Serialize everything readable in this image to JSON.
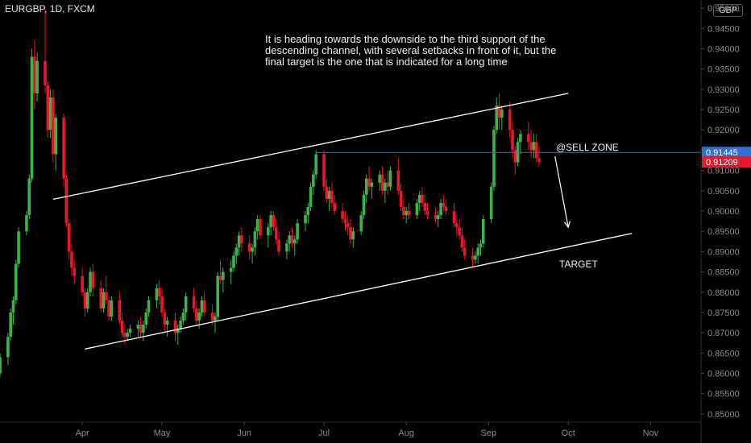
{
  "header": {
    "symbol": "EURGBP, 1D, FXCM",
    "currency": "GBP"
  },
  "annotations": {
    "note": "It is heading towards the downside to the third support of the descending channel, with several setbacks in front of it, but the final target is the one that is indicated for a long time",
    "sell_zone": "@SELL ZONE",
    "target": "TARGET"
  },
  "colors": {
    "up": "#39b54a",
    "down": "#e8172b",
    "line_white": "#ffffff",
    "level_blue": "#2e6fd8",
    "arrow": "#ffffff"
  },
  "chart_data": {
    "type": "candlestick",
    "xlabel": "",
    "ylabel": "",
    "y_ticks": [
      "0.85000",
      "0.85500",
      "0.86000",
      "0.86500",
      "0.87000",
      "0.87500",
      "0.88000",
      "0.88500",
      "0.89000",
      "0.89500",
      "0.90000",
      "0.90500",
      "0.91000",
      "0.91500",
      "0.92000",
      "0.92500",
      "0.93000",
      "0.93500",
      "0.94000",
      "0.94500",
      "0.95000"
    ],
    "ylim": [
      0.848,
      0.952
    ],
    "x_ticks": [
      "Apr",
      "May",
      "Jun",
      "Jul",
      "Aug",
      "Sep",
      "Oct",
      "Nov"
    ],
    "x_tick_dates": [
      "2019-04-01",
      "2019-05-01",
      "2019-06-01",
      "2019-07-01",
      "2019-08-01",
      "2019-09-01",
      "2019-10-01",
      "2019-11-01"
    ],
    "xlim": [
      "2019-03-01",
      "2019-11-20"
    ],
    "price_labels": [
      {
        "value": 0.91445,
        "text": "0.91445",
        "color": "#2e6fd8"
      },
      {
        "value": 0.91209,
        "text": "0.91209",
        "color": "#e8172b"
      }
    ],
    "horizontal_level": {
      "value": 0.91445,
      "from": "2019-06-28",
      "to": "2019-11-20"
    },
    "channel_upper": {
      "from": [
        "2019-03-21",
        0.9029
      ],
      "to": [
        "2019-10-01",
        0.929
      ]
    },
    "channel_lower": {
      "from": [
        "2019-04-02",
        0.866
      ],
      "to": [
        "2019-10-25",
        0.8945
      ]
    },
    "forecast_arrow": {
      "from": [
        "2019-09-26",
        0.9135
      ],
      "to": [
        "2019-10-01",
        0.896
      ]
    },
    "candles": [
      [
        "2019-03-01",
        0.86,
        0.865,
        0.859,
        0.864
      ],
      [
        "2019-03-04",
        0.864,
        0.87,
        0.862,
        0.869
      ],
      [
        "2019-03-05",
        0.869,
        0.876,
        0.868,
        0.875
      ],
      [
        "2019-03-06",
        0.875,
        0.879,
        0.872,
        0.878
      ],
      [
        "2019-03-07",
        0.878,
        0.888,
        0.877,
        0.887
      ],
      [
        "2019-03-08",
        0.887,
        0.896,
        0.886,
        0.895
      ],
      [
        "2019-03-11",
        0.895,
        0.9,
        0.894,
        0.899
      ],
      [
        "2019-03-12",
        0.899,
        0.909,
        0.898,
        0.908
      ],
      [
        "2019-03-13",
        0.908,
        0.94,
        0.907,
        0.938
      ],
      [
        "2019-03-14",
        0.938,
        0.942,
        0.925,
        0.929
      ],
      [
        "2019-03-15",
        0.929,
        0.939,
        0.927,
        0.937
      ],
      [
        "2019-03-18",
        0.937,
        0.95,
        0.929,
        0.931
      ],
      [
        "2019-03-19",
        0.931,
        0.932,
        0.918,
        0.92
      ],
      [
        "2019-03-20",
        0.92,
        0.93,
        0.918,
        0.928
      ],
      [
        "2019-03-21",
        0.928,
        0.93,
        0.912,
        0.914
      ],
      [
        "2019-03-22",
        0.914,
        0.924,
        0.91,
        0.923
      ],
      [
        "2019-03-25",
        0.923,
        0.924,
        0.906,
        0.908
      ],
      [
        "2019-03-26",
        0.908,
        0.909,
        0.896,
        0.897
      ],
      [
        "2019-03-27",
        0.897,
        0.898,
        0.888,
        0.89
      ],
      [
        "2019-03-28",
        0.89,
        0.892,
        0.884,
        0.886
      ],
      [
        "2019-03-29",
        0.886,
        0.888,
        0.882,
        0.884
      ],
      [
        "2019-04-01",
        0.884,
        0.886,
        0.879,
        0.88
      ],
      [
        "2019-04-02",
        0.88,
        0.881,
        0.874,
        0.876
      ],
      [
        "2019-04-03",
        0.876,
        0.881,
        0.875,
        0.88
      ],
      [
        "2019-04-04",
        0.88,
        0.886,
        0.879,
        0.885
      ],
      [
        "2019-04-05",
        0.885,
        0.887,
        0.879,
        0.881
      ],
      [
        "2019-04-08",
        0.881,
        0.883,
        0.875,
        0.876
      ],
      [
        "2019-04-09",
        0.876,
        0.881,
        0.875,
        0.88
      ],
      [
        "2019-04-10",
        0.88,
        0.884,
        0.877,
        0.878
      ],
      [
        "2019-04-11",
        0.878,
        0.879,
        0.873,
        0.874
      ],
      [
        "2019-04-12",
        0.874,
        0.879,
        0.873,
        0.878
      ],
      [
        "2019-04-15",
        0.878,
        0.88,
        0.872,
        0.873
      ],
      [
        "2019-04-16",
        0.873,
        0.875,
        0.869,
        0.87
      ],
      [
        "2019-04-17",
        0.87,
        0.872,
        0.867,
        0.869
      ],
      [
        "2019-04-18",
        0.869,
        0.871,
        0.868,
        0.87
      ],
      [
        "2019-04-19",
        0.87,
        0.872,
        0.869,
        0.871
      ],
      [
        "2019-04-22",
        0.871,
        0.873,
        0.869,
        0.872
      ],
      [
        "2019-04-23",
        0.872,
        0.874,
        0.869,
        0.87
      ],
      [
        "2019-04-24",
        0.87,
        0.873,
        0.868,
        0.872
      ],
      [
        "2019-04-25",
        0.872,
        0.876,
        0.871,
        0.875
      ],
      [
        "2019-04-26",
        0.875,
        0.879,
        0.874,
        0.878
      ],
      [
        "2019-04-29",
        0.878,
        0.882,
        0.876,
        0.881
      ],
      [
        "2019-04-30",
        0.881,
        0.883,
        0.877,
        0.879
      ],
      [
        "2019-05-01",
        0.879,
        0.881,
        0.874,
        0.875
      ],
      [
        "2019-05-02",
        0.875,
        0.876,
        0.87,
        0.872
      ],
      [
        "2019-05-03",
        0.872,
        0.874,
        0.869,
        0.873
      ],
      [
        "2019-05-06",
        0.873,
        0.875,
        0.868,
        0.87
      ],
      [
        "2019-05-07",
        0.87,
        0.872,
        0.867,
        0.871
      ],
      [
        "2019-05-08",
        0.871,
        0.874,
        0.87,
        0.873
      ],
      [
        "2019-05-09",
        0.873,
        0.876,
        0.872,
        0.875
      ],
      [
        "2019-05-10",
        0.875,
        0.88,
        0.873,
        0.879
      ],
      [
        "2019-05-13",
        0.879,
        0.881,
        0.875,
        0.876
      ],
      [
        "2019-05-14",
        0.876,
        0.878,
        0.872,
        0.873
      ],
      [
        "2019-05-15",
        0.873,
        0.876,
        0.871,
        0.875
      ],
      [
        "2019-05-16",
        0.875,
        0.879,
        0.874,
        0.878
      ],
      [
        "2019-05-17",
        0.878,
        0.88,
        0.874,
        0.875
      ],
      [
        "2019-05-20",
        0.875,
        0.877,
        0.872,
        0.873
      ],
      [
        "2019-05-21",
        0.873,
        0.875,
        0.87,
        0.874
      ],
      [
        "2019-05-22",
        0.874,
        0.885,
        0.873,
        0.884
      ],
      [
        "2019-05-23",
        0.884,
        0.888,
        0.882,
        0.883
      ],
      [
        "2019-05-24",
        0.883,
        0.886,
        0.88,
        0.885
      ],
      [
        "2019-05-27",
        0.885,
        0.888,
        0.882,
        0.886
      ],
      [
        "2019-05-28",
        0.886,
        0.89,
        0.885,
        0.889
      ],
      [
        "2019-05-29",
        0.889,
        0.892,
        0.887,
        0.891
      ],
      [
        "2019-05-30",
        0.891,
        0.895,
        0.889,
        0.894
      ],
      [
        "2019-05-31",
        0.894,
        0.896,
        0.89,
        0.892
      ],
      [
        "2019-06-03",
        0.892,
        0.894,
        0.888,
        0.89
      ],
      [
        "2019-06-04",
        0.89,
        0.892,
        0.887,
        0.891
      ],
      [
        "2019-06-05",
        0.891,
        0.896,
        0.889,
        0.895
      ],
      [
        "2019-06-06",
        0.895,
        0.899,
        0.893,
        0.898
      ],
      [
        "2019-06-07",
        0.898,
        0.899,
        0.893,
        0.894
      ],
      [
        "2019-06-10",
        0.894,
        0.897,
        0.891,
        0.896
      ],
      [
        "2019-06-11",
        0.896,
        0.9,
        0.894,
        0.899
      ],
      [
        "2019-06-12",
        0.899,
        0.9,
        0.895,
        0.896
      ],
      [
        "2019-06-13",
        0.896,
        0.898,
        0.892,
        0.893
      ],
      [
        "2019-06-14",
        0.893,
        0.895,
        0.889,
        0.89
      ],
      [
        "2019-06-17",
        0.89,
        0.893,
        0.888,
        0.892
      ],
      [
        "2019-06-18",
        0.892,
        0.895,
        0.89,
        0.894
      ],
      [
        "2019-06-19",
        0.894,
        0.896,
        0.891,
        0.892
      ],
      [
        "2019-06-20",
        0.892,
        0.894,
        0.889,
        0.893
      ],
      [
        "2019-06-21",
        0.893,
        0.898,
        0.892,
        0.897
      ],
      [
        "2019-06-24",
        0.897,
        0.9,
        0.895,
        0.899
      ],
      [
        "2019-06-25",
        0.899,
        0.902,
        0.897,
        0.901
      ],
      [
        "2019-06-26",
        0.901,
        0.907,
        0.9,
        0.906
      ],
      [
        "2019-06-27",
        0.906,
        0.91,
        0.904,
        0.909
      ],
      [
        "2019-06-28",
        0.909,
        0.915,
        0.908,
        0.914
      ],
      [
        "2019-07-01",
        0.914,
        0.915,
        0.905,
        0.906
      ],
      [
        "2019-07-02",
        0.906,
        0.908,
        0.902,
        0.903
      ],
      [
        "2019-07-03",
        0.903,
        0.906,
        0.9,
        0.905
      ],
      [
        "2019-07-04",
        0.905,
        0.907,
        0.901,
        0.902
      ],
      [
        "2019-07-05",
        0.902,
        0.904,
        0.899,
        0.9
      ],
      [
        "2019-07-08",
        0.9,
        0.902,
        0.897,
        0.898
      ],
      [
        "2019-07-09",
        0.898,
        0.9,
        0.895,
        0.897
      ],
      [
        "2019-07-10",
        0.897,
        0.899,
        0.894,
        0.896
      ],
      [
        "2019-07-11",
        0.896,
        0.898,
        0.892,
        0.893
      ],
      [
        "2019-07-12",
        0.893,
        0.896,
        0.891,
        0.895
      ],
      [
        "2019-07-15",
        0.895,
        0.9,
        0.894,
        0.899
      ],
      [
        "2019-07-16",
        0.899,
        0.905,
        0.898,
        0.904
      ],
      [
        "2019-07-17",
        0.904,
        0.909,
        0.902,
        0.908
      ],
      [
        "2019-07-18",
        0.908,
        0.911,
        0.905,
        0.906
      ],
      [
        "2019-07-19",
        0.906,
        0.908,
        0.903,
        0.907
      ],
      [
        "2019-07-22",
        0.907,
        0.91,
        0.905,
        0.909
      ],
      [
        "2019-07-23",
        0.909,
        0.911,
        0.904,
        0.905
      ],
      [
        "2019-07-24",
        0.905,
        0.908,
        0.902,
        0.907
      ],
      [
        "2019-07-25",
        0.907,
        0.91,
        0.904,
        0.906
      ],
      [
        "2019-07-26",
        0.906,
        0.911,
        0.905,
        0.91
      ],
      [
        "2019-07-29",
        0.91,
        0.913,
        0.904,
        0.905
      ],
      [
        "2019-07-30",
        0.905,
        0.907,
        0.9,
        0.901
      ],
      [
        "2019-07-31",
        0.901,
        0.903,
        0.898,
        0.899
      ],
      [
        "2019-08-01",
        0.899,
        0.901,
        0.897,
        0.9
      ],
      [
        "2019-08-02",
        0.9,
        0.902,
        0.898,
        0.899
      ],
      [
        "2019-08-05",
        0.899,
        0.903,
        0.898,
        0.902
      ],
      [
        "2019-08-06",
        0.902,
        0.905,
        0.9,
        0.904
      ],
      [
        "2019-08-07",
        0.904,
        0.906,
        0.901,
        0.902
      ],
      [
        "2019-08-08",
        0.902,
        0.904,
        0.899,
        0.9
      ],
      [
        "2019-08-09",
        0.9,
        0.902,
        0.898,
        0.899
      ],
      [
        "2019-08-12",
        0.899,
        0.901,
        0.897,
        0.898
      ],
      [
        "2019-08-13",
        0.898,
        0.9,
        0.896,
        0.899
      ],
      [
        "2019-08-14",
        0.899,
        0.903,
        0.898,
        0.902
      ],
      [
        "2019-08-15",
        0.902,
        0.904,
        0.9,
        0.901
      ],
      [
        "2019-08-16",
        0.901,
        0.903,
        0.899,
        0.9
      ],
      [
        "2019-08-19",
        0.9,
        0.902,
        0.896,
        0.897
      ],
      [
        "2019-08-20",
        0.897,
        0.899,
        0.894,
        0.896
      ],
      [
        "2019-08-21",
        0.896,
        0.898,
        0.893,
        0.894
      ],
      [
        "2019-08-22",
        0.894,
        0.896,
        0.89,
        0.891
      ],
      [
        "2019-08-23",
        0.891,
        0.893,
        0.888,
        0.889
      ],
      [
        "2019-08-26",
        0.889,
        0.891,
        0.886,
        0.888
      ],
      [
        "2019-08-27",
        0.888,
        0.89,
        0.887,
        0.889
      ],
      [
        "2019-08-28",
        0.889,
        0.892,
        0.887,
        0.891
      ],
      [
        "2019-08-29",
        0.891,
        0.893,
        0.889,
        0.892
      ],
      [
        "2019-08-30",
        0.892,
        0.899,
        0.891,
        0.898
      ],
      [
        "2019-09-02",
        0.898,
        0.907,
        0.897,
        0.906
      ],
      [
        "2019-09-03",
        0.906,
        0.921,
        0.905,
        0.92
      ],
      [
        "2019-09-04",
        0.92,
        0.928,
        0.919,
        0.926
      ],
      [
        "2019-09-05",
        0.926,
        0.929,
        0.92,
        0.923
      ],
      [
        "2019-09-06",
        0.923,
        0.926,
        0.92,
        0.925
      ],
      [
        "2019-09-09",
        0.925,
        0.927,
        0.918,
        0.92
      ],
      [
        "2019-09-10",
        0.92,
        0.922,
        0.913,
        0.915
      ],
      [
        "2019-09-11",
        0.915,
        0.916,
        0.909,
        0.912
      ],
      [
        "2019-09-12",
        0.912,
        0.918,
        0.911,
        0.917
      ],
      [
        "2019-09-13",
        0.917,
        0.92,
        0.914,
        0.919
      ],
      [
        "2019-09-16",
        0.919,
        0.922,
        0.915,
        0.917
      ],
      [
        "2019-09-17",
        0.917,
        0.92,
        0.913,
        0.915
      ],
      [
        "2019-09-18",
        0.915,
        0.919,
        0.913,
        0.917
      ],
      [
        "2019-09-19",
        0.917,
        0.919,
        0.912,
        0.913
      ],
      [
        "2019-09-20",
        0.913,
        0.916,
        0.911,
        0.9121
      ]
    ]
  }
}
